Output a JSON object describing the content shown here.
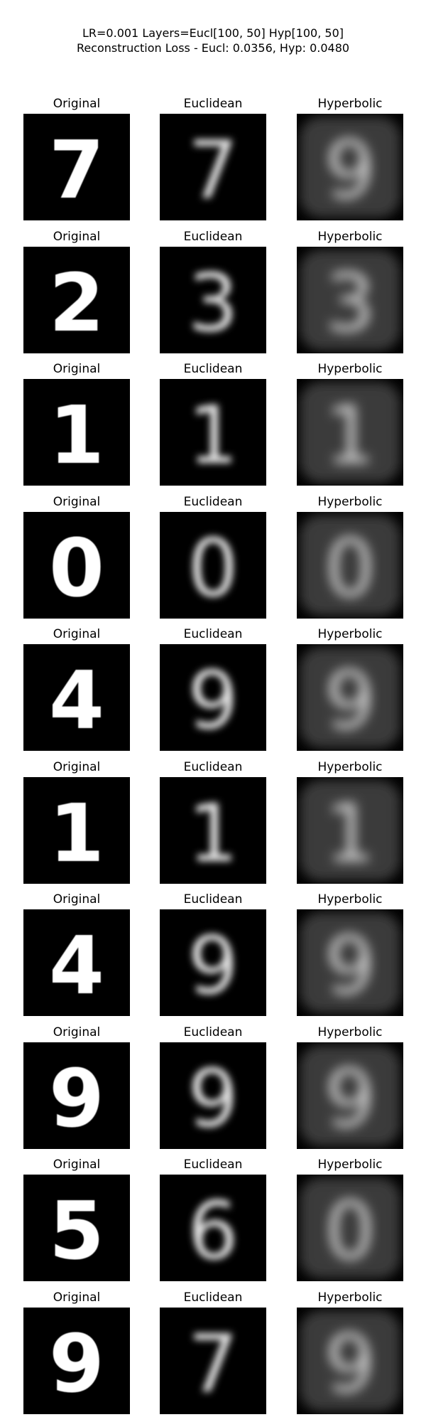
{
  "figure": {
    "title_line1": "LR=0.001 Layers=Eucl[100, 50] Hyp[100, 50]",
    "title_line2": "Reconstruction Loss - Eucl: 0.0356, Hyp: 0.0480",
    "column_titles": [
      "Original",
      "Euclidean",
      "Hyperbolic"
    ],
    "rows": [
      {
        "digit": "7",
        "euclidean_digit": "7",
        "hyperbolic_digit": "9"
      },
      {
        "digit": "2",
        "euclidean_digit": "3",
        "hyperbolic_digit": "3"
      },
      {
        "digit": "1",
        "euclidean_digit": "1",
        "hyperbolic_digit": "1"
      },
      {
        "digit": "0",
        "euclidean_digit": "0",
        "hyperbolic_digit": "0"
      },
      {
        "digit": "4",
        "euclidean_digit": "9",
        "hyperbolic_digit": "9"
      },
      {
        "digit": "1",
        "euclidean_digit": "1",
        "hyperbolic_digit": "1"
      },
      {
        "digit": "4",
        "euclidean_digit": "9",
        "hyperbolic_digit": "9"
      },
      {
        "digit": "9",
        "euclidean_digit": "9",
        "hyperbolic_digit": "9"
      },
      {
        "digit": "5",
        "euclidean_digit": "6",
        "hyperbolic_digit": "0"
      },
      {
        "digit": "9",
        "euclidean_digit": "7",
        "hyperbolic_digit": "9"
      }
    ],
    "colors": {
      "background": "#000000",
      "original_ink": "#ffffff",
      "euclidean_ink": "#e6e6e6",
      "hyperbolic_ink": "#d0d0d0",
      "hyperbolic_bg": "#3a3a3a"
    }
  }
}
